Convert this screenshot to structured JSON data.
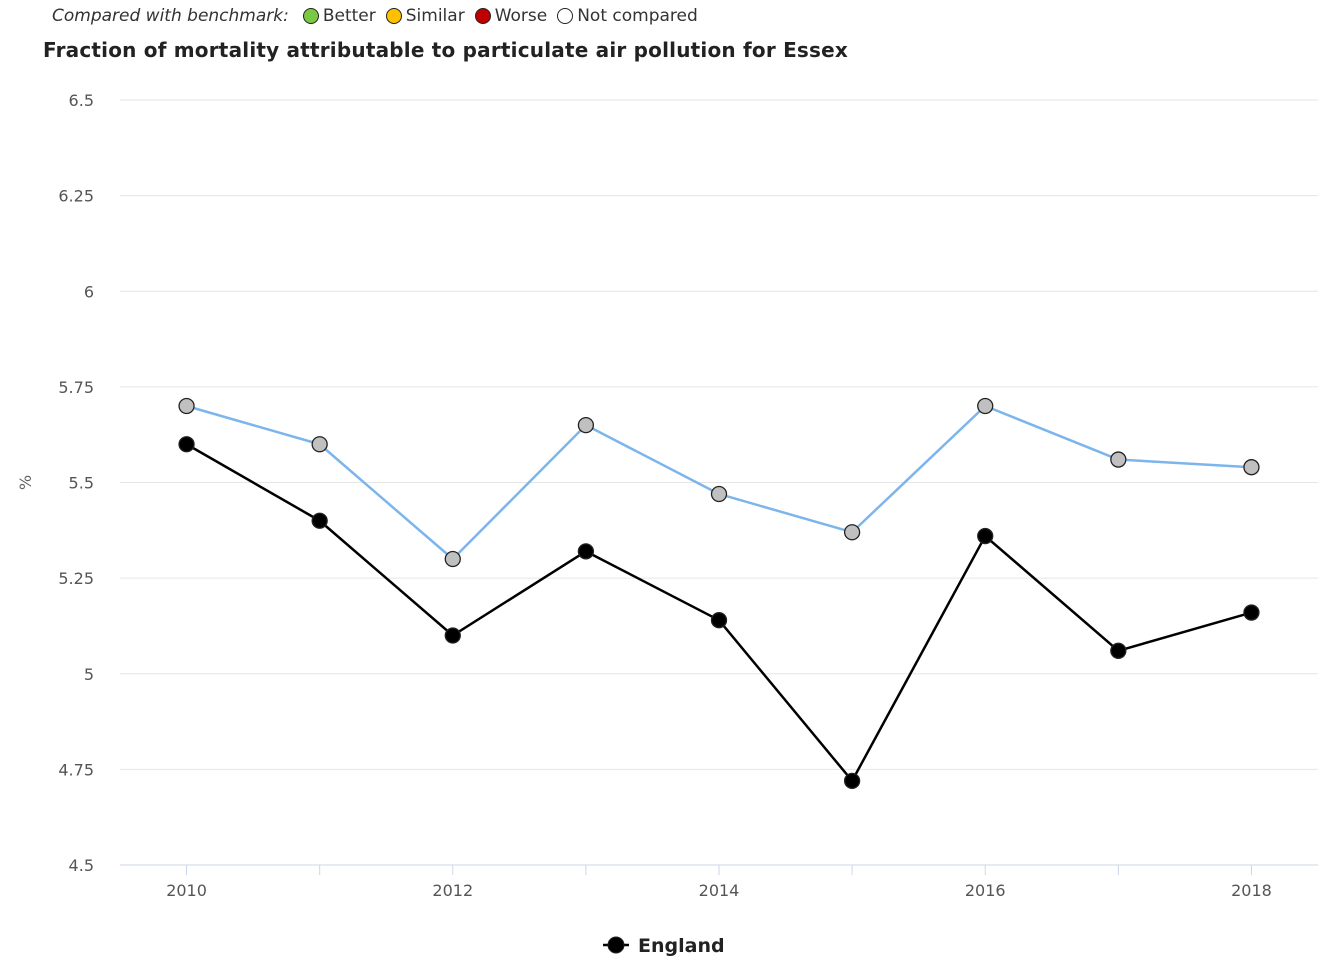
{
  "benchmark_legend": {
    "prefix": "Compared with benchmark:",
    "items": [
      {
        "label": "Better",
        "color": "#7ac943"
      },
      {
        "label": "Similar",
        "color": "#ffc000"
      },
      {
        "label": "Worse",
        "color": "#c00000"
      },
      {
        "label": "Not compared",
        "color": "#ffffff"
      }
    ]
  },
  "chart_data": {
    "type": "line",
    "title": "Fraction of mortality attributable to particulate air pollution for Essex",
    "ylabel": "%",
    "xlabel": "",
    "ylim": [
      4.5,
      6.5
    ],
    "yticks": [
      4.5,
      4.75,
      5,
      5.25,
      5.5,
      5.75,
      6,
      6.25,
      6.5
    ],
    "ytick_labels": [
      "4.5",
      "4.75",
      "5",
      "5.25",
      "5.5",
      "5.75",
      "6",
      "6.25",
      "6.5"
    ],
    "xlim": [
      2009.5,
      2018.5
    ],
    "x": [
      2010,
      2011,
      2012,
      2013,
      2014,
      2015,
      2016,
      2017,
      2018
    ],
    "xtick_labels": [
      "2010",
      "2012",
      "2014",
      "2016",
      "2018"
    ],
    "xtick_values": [
      2010,
      2012,
      2014,
      2016,
      2018
    ],
    "grid": true,
    "legend_position": "bottom-center",
    "series": [
      {
        "values": [
          5.7,
          5.6,
          5.3,
          5.65,
          5.47,
          5.37,
          5.7,
          5.56,
          5.54
        ],
        "line_color": "#7cb5ec",
        "marker_fill": "#c0c0c0"
      },
      {
        "name": "England",
        "values": [
          5.6,
          5.4,
          5.1,
          5.32,
          5.14,
          4.72,
          5.36,
          5.06,
          5.16
        ],
        "line_color": "#000000",
        "marker_fill": "#000000"
      }
    ]
  }
}
